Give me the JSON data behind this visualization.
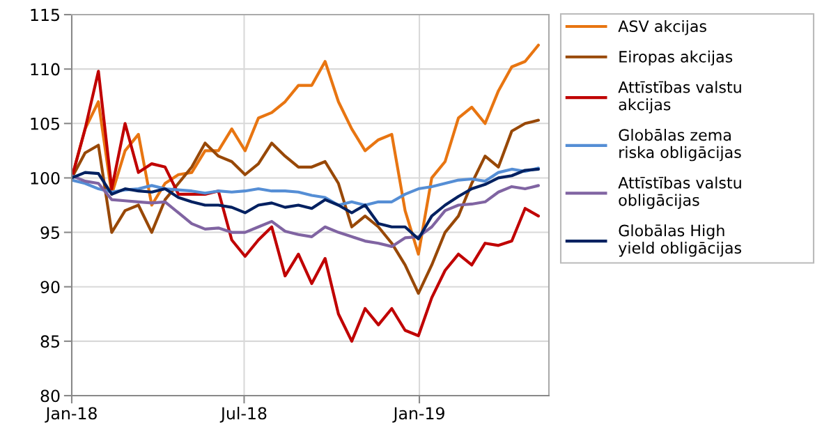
{
  "chart_data": {
    "type": "line",
    "x": [
      "2018-01-01",
      "2018-01-15",
      "2018-01-29",
      "2018-02-12",
      "2018-02-26",
      "2018-03-12",
      "2018-03-26",
      "2018-04-09",
      "2018-04-23",
      "2018-05-07",
      "2018-05-21",
      "2018-06-04",
      "2018-06-18",
      "2018-07-02",
      "2018-07-16",
      "2018-07-30",
      "2018-08-13",
      "2018-08-27",
      "2018-09-10",
      "2018-09-24",
      "2018-10-08",
      "2018-10-22",
      "2018-11-05",
      "2018-11-19",
      "2018-12-03",
      "2018-12-17",
      "2018-12-31",
      "2019-01-14",
      "2019-01-28",
      "2019-02-11",
      "2019-02-25",
      "2019-03-11",
      "2019-03-25",
      "2019-04-08",
      "2019-04-22",
      "2019-05-06"
    ],
    "series": [
      {
        "name": "ASV akcijas",
        "color": "#e87511",
        "values": [
          100,
          104.5,
          107,
          98.5,
          102.5,
          104,
          97.5,
          99.5,
          100.3,
          100.5,
          102.5,
          102.5,
          104.5,
          102.5,
          105.5,
          106,
          107,
          108.5,
          108.5,
          110.7,
          107,
          104.5,
          102.5,
          103.5,
          104,
          97,
          93,
          100,
          101.5,
          105.5,
          106.5,
          105,
          108,
          110.2,
          110.7,
          112.2
        ]
      },
      {
        "name": "Eiropas akcijas",
        "color": "#984807",
        "values": [
          100,
          102.3,
          103,
          95,
          97,
          97.5,
          95,
          98,
          99.5,
          101,
          103.2,
          102,
          101.5,
          100.3,
          101.3,
          103.2,
          102,
          101,
          101,
          101.5,
          99.5,
          95.5,
          96.5,
          95.5,
          94,
          92,
          89.4,
          92,
          95,
          96.5,
          99.5,
          102,
          101,
          104.3,
          105,
          105.3
        ]
      },
      {
        "name": "Attīstības valstu akcijas",
        "color": "#c00000",
        "values": [
          100,
          104.5,
          109.8,
          99,
          105,
          100.5,
          101.3,
          101,
          98.5,
          98.5,
          98.5,
          98.8,
          94.3,
          92.8,
          94.3,
          95.5,
          91,
          93,
          90.3,
          92.6,
          87.5,
          85,
          88,
          86.5,
          88,
          86,
          85.5,
          89,
          91.5,
          93,
          92,
          94,
          93.8,
          94.2,
          97.2,
          96.5
        ]
      },
      {
        "name": "Globālas zema riska obligācijas",
        "color": "#558ed5",
        "values": [
          99.8,
          99.5,
          99,
          98.7,
          98.9,
          99,
          99.3,
          99,
          98.9,
          98.8,
          98.6,
          98.8,
          98.7,
          98.8,
          99,
          98.8,
          98.8,
          98.7,
          98.4,
          98.2,
          97.5,
          97.8,
          97.5,
          97.8,
          97.8,
          98.5,
          99,
          99.2,
          99.5,
          99.8,
          99.9,
          99.7,
          100.5,
          100.8,
          100.6,
          100.9
        ]
      },
      {
        "name": "Attīstības valstu obligācijas",
        "color": "#8064a2",
        "values": [
          100.2,
          99.7,
          99.5,
          98,
          97.9,
          97.8,
          97.7,
          97.8,
          96.8,
          95.8,
          95.3,
          95.4,
          95,
          95,
          95.5,
          96,
          95.1,
          94.8,
          94.6,
          95.5,
          95,
          94.6,
          94.2,
          94,
          93.7,
          94.5,
          94.6,
          95.5,
          97,
          97.5,
          97.6,
          97.8,
          98.7,
          99.2,
          99,
          99.3
        ]
      },
      {
        "name": "Globālas High yield obligācijas",
        "color": "#002060",
        "values": [
          100,
          100.5,
          100.4,
          98.5,
          99,
          98.8,
          98.7,
          99,
          98.2,
          97.8,
          97.5,
          97.5,
          97.3,
          96.8,
          97.5,
          97.7,
          97.3,
          97.5,
          97.2,
          98,
          97.5,
          96.8,
          97.5,
          95.8,
          95.5,
          95.5,
          94.4,
          96.5,
          97.5,
          98.3,
          99,
          99.4,
          100,
          100.2,
          100.7,
          100.8
        ]
      }
    ],
    "xlim": [
      "2018-01-01",
      "2019-05-17"
    ],
    "xticks": [
      {
        "value": "2018-01-01",
        "label": "Jan-18"
      },
      {
        "value": "2018-07-01",
        "label": "Jul-18"
      },
      {
        "value": "2019-01-01",
        "label": "Jan-19"
      }
    ],
    "ylim": [
      80,
      115
    ],
    "yticks": [
      80,
      85,
      90,
      95,
      100,
      105,
      110,
      115
    ],
    "grid": true,
    "legend": "right"
  }
}
